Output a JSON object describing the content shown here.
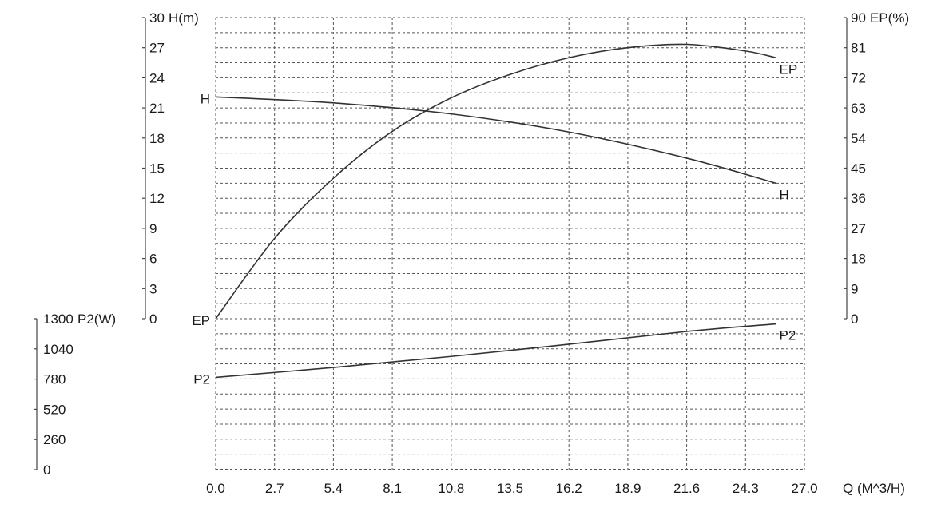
{
  "chart_data": {
    "type": "line",
    "x_axis": {
      "label": "Q (M^3/H)",
      "range": [
        0,
        27
      ],
      "ticks": [
        "0.0",
        "2.7",
        "5.4",
        "8.1",
        "10.8",
        "13.5",
        "16.2",
        "18.9",
        "21.6",
        "24.3",
        "27.0"
      ]
    },
    "y_left_axis": {
      "label": "H(m)",
      "range": [
        0,
        30
      ],
      "ticks": [
        "0",
        "3",
        "6",
        "9",
        "12",
        "15",
        "18",
        "21",
        "24",
        "27",
        "30"
      ]
    },
    "y_right_axis": {
      "label": "EP(%)",
      "range": [
        0,
        90
      ],
      "ticks": [
        "0",
        "9",
        "18",
        "27",
        "36",
        "45",
        "54",
        "63",
        "72",
        "81",
        "90"
      ]
    },
    "y_power_axis": {
      "label": "P2(W)",
      "range": [
        0,
        1300
      ],
      "ticks": [
        "0",
        "260",
        "520",
        "780",
        "1040",
        "1300"
      ]
    },
    "grid": true,
    "series": [
      {
        "name": "H",
        "axis": "H",
        "start_label": "H",
        "end_label": "H",
        "x": [
          0,
          5.4,
          10.8,
          16.2,
          21.6,
          25.7
        ],
        "y": [
          22.1,
          21.5,
          20.4,
          18.6,
          16.0,
          13.5
        ]
      },
      {
        "name": "EP",
        "axis": "EP",
        "start_label": "EP",
        "end_label": "EP",
        "x": [
          0,
          2.7,
          5.4,
          8.1,
          10.8,
          13.5,
          16.2,
          18.9,
          21.6,
          24.3,
          25.7
        ],
        "y": [
          0,
          24,
          42,
          56,
          66,
          73,
          78,
          81,
          82,
          80,
          78
        ]
      },
      {
        "name": "P2",
        "axis": "P2",
        "start_label": "P2",
        "end_label": "P2",
        "x": [
          0,
          5.4,
          10.8,
          16.2,
          21.6,
          25.7
        ],
        "y": [
          795,
          880,
          975,
          1080,
          1190,
          1255
        ]
      }
    ]
  }
}
